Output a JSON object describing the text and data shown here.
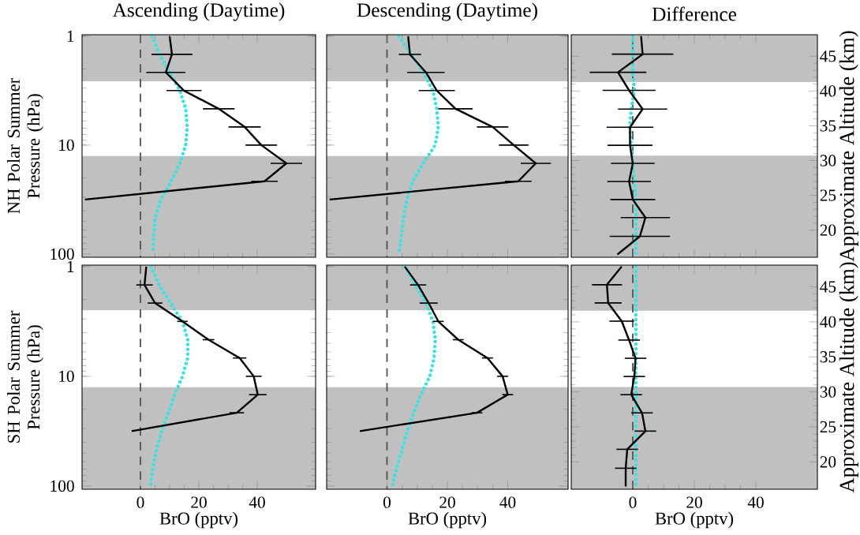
{
  "chart_data": [
    {
      "type": "line",
      "title": "Ascending (Daytime)",
      "ylabel": "NH Polar Summer Pressure (hPa)",
      "xlim": [
        -20,
        60
      ],
      "ylim": [
        107,
        0.97
      ],
      "xticks": [
        0,
        20,
        40
      ],
      "yticks": [
        1,
        10,
        100
      ],
      "log": "y",
      "tick_labels": "y",
      "marker": "none",
      "ref_lines": [
        {
          "axis": "x",
          "value": 0,
          "color": "#555555",
          "line_style": "dashed"
        }
      ],
      "bands": [
        {
          "axis": "y",
          "from": 0.97,
          "to": 2.6,
          "color": "#c0c0c0"
        },
        {
          "axis": "y",
          "from": 12.6,
          "to": 107,
          "color": "#c0c0c0"
        }
      ],
      "series": [
        {
          "color": "#40e0e0",
          "line_style": "dotted",
          "values": [
            1,
            1.47,
            2.15,
            3.16,
            4.64,
            6.81,
            10,
            14.7,
            21.5,
            31.6,
            46.4,
            68.1,
            100
          ],
          "x": [
            4,
            6.5,
            10,
            13.5,
            15.5,
            16,
            15.5,
            13.5,
            10.5,
            7,
            5,
            4.5,
            4.3
          ]
        },
        {
          "color": "#000000",
          "line_style": "solid",
          "values": [
            1,
            1.47,
            2.15,
            3.16,
            4.64,
            6.81,
            10,
            14.7,
            21.5,
            31.6
          ],
          "x": [
            10,
            10.8,
            8.7,
            14.9,
            26.8,
            35.7,
            41.4,
            50,
            42.5,
            -19
          ],
          "xerrors": [
            null,
            7,
            6.7,
            6,
            5.4,
            5.5,
            5.4,
            5.4,
            4.5,
            null
          ]
        }
      ]
    },
    {
      "type": "line",
      "title": "Descending (Daytime)",
      "xlim": [
        -20,
        60
      ],
      "ylim": [
        107,
        0.97
      ],
      "xticks": [
        0,
        20,
        40
      ],
      "yticks": [
        1,
        10,
        100
      ],
      "log": "y",
      "tick_labels": false,
      "marker": "none",
      "ref_lines": [
        {
          "axis": "x",
          "value": 0,
          "color": "#555555",
          "line_style": "dashed"
        }
      ],
      "bands": [
        {
          "axis": "y",
          "from": 0.97,
          "to": 2.6,
          "color": "#c0c0c0"
        },
        {
          "axis": "y",
          "from": 12.6,
          "to": 107,
          "color": "#c0c0c0"
        }
      ],
      "series": [
        {
          "color": "#40e0e0",
          "line_style": "dotted",
          "values": [
            1,
            1.47,
            2.15,
            3.16,
            4.64,
            6.81,
            10,
            14.7,
            21.5,
            31.6,
            46.4,
            68.1,
            100
          ],
          "x": [
            4,
            8,
            12,
            15.2,
            16.5,
            17,
            16,
            12,
            8.5,
            6.6,
            5.5,
            4.8,
            3.9
          ]
        },
        {
          "color": "#000000",
          "line_style": "solid",
          "values": [
            1,
            1.47,
            2.15,
            3.16,
            4.64,
            6.81,
            10,
            14.7,
            21.5,
            31.6
          ],
          "x": [
            7,
            7.6,
            12.9,
            16.5,
            22.7,
            35,
            42,
            49.3,
            43.5,
            -19
          ],
          "xerrors": [
            null,
            3.7,
            6.2,
            6,
            5.7,
            5.2,
            4.9,
            5,
            4.4,
            null
          ]
        }
      ]
    },
    {
      "type": "line",
      "title": "Difference",
      "y2label": "Approximate Altitude (km)",
      "xlim": [
        -20,
        60
      ],
      "xticks": [
        0,
        20,
        40
      ],
      "y2lim": [
        16.1,
        48.1
      ],
      "y2ticks": [
        20,
        25,
        30,
        35,
        40,
        45
      ],
      "tick_labels": "y",
      "marker": "none",
      "ref_lines": [
        {
          "axis": "x",
          "value": 0,
          "color": "#555555",
          "line_style": "dashed"
        }
      ],
      "bands": [
        {
          "axis": "y2",
          "from": 41.3,
          "to": 48.1,
          "color": "#c0c0c0"
        },
        {
          "axis": "y2",
          "from": 16.1,
          "to": 30.7,
          "color": "#c0c0c0"
        }
      ],
      "series": [
        {
          "axis": "y2",
          "color": "#40e0e0",
          "line_style": "dotted",
          "values": [
            47.9,
            45.3,
            42.7,
            40.1,
            37.4,
            34.8,
            32.2,
            29.6,
            27,
            24.4,
            21.8,
            19.1,
            16.5
          ],
          "x": [
            0,
            0,
            0,
            0.5,
            -0.5,
            -1,
            -0.5,
            0,
            0.5,
            1,
            1,
            1,
            1
          ]
        },
        {
          "axis": "y2",
          "color": "#000000",
          "line_style": "solid",
          "values": [
            47.9,
            45.3,
            42.7,
            40.1,
            37.4,
            34.8,
            32.2,
            29.6,
            27,
            24.4,
            21.8,
            19.1,
            16.5
          ],
          "x": [
            2.7,
            3.2,
            -4.8,
            -1.2,
            3.2,
            -0.9,
            -0.9,
            0,
            -1.2,
            0,
            4.1,
            2.3,
            -5
          ],
          "xerrors": [
            null,
            10,
            9.2,
            8.6,
            8,
            7.6,
            7.3,
            7.1,
            7.1,
            7.3,
            8,
            9.8,
            null
          ]
        }
      ]
    },
    {
      "type": "line",
      "xlabel": "BrO (pptv)",
      "ylabel": "SH Polar Summer Pressure (hPa)",
      "xlim": [
        -20,
        60
      ],
      "ylim": [
        107,
        0.97
      ],
      "xticks": [
        0,
        20,
        40
      ],
      "yticks": [
        1,
        10,
        100
      ],
      "log": "y",
      "marker": "none",
      "ref_lines": [
        {
          "axis": "x",
          "value": 0,
          "color": "#555555",
          "line_style": "dashed"
        }
      ],
      "bands": [
        {
          "axis": "y",
          "from": 0.97,
          "to": 2.5,
          "color": "#c0c0c0"
        },
        {
          "axis": "y",
          "from": 12.6,
          "to": 107,
          "color": "#c0c0c0"
        }
      ],
      "series": [
        {
          "color": "#40e0e0",
          "line_style": "dotted",
          "values": [
            1,
            1.47,
            2.15,
            3.16,
            4.64,
            6.81,
            10,
            14.7,
            21.5,
            31.6,
            46.4,
            68.1,
            100
          ],
          "x": [
            3.7,
            6.4,
            10.3,
            14.4,
            16.2,
            16.2,
            14.4,
            11.7,
            9.6,
            7.3,
            5.5,
            4.3,
            3.4
          ]
        },
        {
          "color": "#000000",
          "line_style": "solid",
          "values": [
            1,
            1.47,
            2.15,
            3.16,
            4.64,
            6.81,
            10,
            14.7,
            21.5,
            31.6
          ],
          "x": [
            2,
            1.4,
            5,
            14.4,
            23.3,
            34,
            38.8,
            40.2,
            33,
            -3
          ],
          "xerrors": [
            null,
            2.8,
            2.5,
            1.8,
            2,
            2.3,
            2.7,
            3,
            2.5,
            null
          ]
        }
      ]
    },
    {
      "type": "line",
      "xlabel": "BrO (pptv)",
      "xlim": [
        -20,
        60
      ],
      "ylim": [
        107,
        0.97
      ],
      "xticks": [
        0,
        20,
        40
      ],
      "yticks": [
        1,
        10,
        100
      ],
      "log": "y",
      "tick_labels": "x",
      "marker": "none",
      "ref_lines": [
        {
          "axis": "x",
          "value": 0,
          "color": "#555555",
          "line_style": "dashed"
        }
      ],
      "bands": [
        {
          "axis": "y",
          "from": 0.97,
          "to": 2.5,
          "color": "#c0c0c0"
        },
        {
          "axis": "y",
          "from": 12.6,
          "to": 107,
          "color": "#c0c0c0"
        }
      ],
      "series": [
        {
          "color": "#40e0e0",
          "line_style": "dotted",
          "values": [
            1,
            1.47,
            2.15,
            3.16,
            4.64,
            6.81,
            10,
            14.7,
            21.5,
            31.6,
            46.4,
            68.1,
            100
          ],
          "x": [
            5.9,
            9.4,
            12.9,
            15.2,
            16,
            15.6,
            14.2,
            11.2,
            8.9,
            6.7,
            5,
            3.2,
            1.8
          ]
        },
        {
          "color": "#000000",
          "line_style": "solid",
          "values": [
            1,
            1.47,
            2.15,
            3.16,
            4.64,
            6.81,
            10,
            14.7,
            21.5,
            31.6
          ],
          "x": [
            5.9,
            10.3,
            13.8,
            17,
            23.6,
            33.3,
            38.3,
            40,
            29.8,
            -9
          ],
          "xerrors": [
            null,
            2.7,
            3,
            1.8,
            1.8,
            1.8,
            1.8,
            1.8,
            1.8,
            null
          ]
        }
      ]
    },
    {
      "type": "line",
      "xlabel": "BrO (pptv)",
      "y2label": "Approximate Altitude (km)",
      "xlim": [
        -20,
        60
      ],
      "xticks": [
        0,
        20,
        40
      ],
      "y2lim": [
        16.1,
        48.1
      ],
      "y2ticks": [
        20,
        25,
        30,
        35,
        40,
        45
      ],
      "marker": "none",
      "ref_lines": [
        {
          "axis": "x",
          "value": 0,
          "color": "#555555",
          "line_style": "dashed"
        }
      ],
      "bands": [
        {
          "axis": "y2",
          "from": 41.6,
          "to": 48.1,
          "color": "#c0c0c0"
        },
        {
          "axis": "y2",
          "from": 16.1,
          "to": 30.7,
          "color": "#c0c0c0"
        }
      ],
      "series": [
        {
          "axis": "y2",
          "color": "#40e0e0",
          "line_style": "dotted",
          "values": [
            47.9,
            45.3,
            42.7,
            40.1,
            37.4,
            34.8,
            32.2,
            29.6,
            27,
            24.4,
            21.8,
            19.1,
            16.5
          ],
          "x": [
            1,
            1,
            1,
            1,
            1,
            1,
            1,
            1,
            1,
            1,
            1,
            1,
            1
          ]
        },
        {
          "axis": "y2",
          "color": "#000000",
          "line_style": "solid",
          "values": [
            47.9,
            45.3,
            42.7,
            40.1,
            37.4,
            34.8,
            32.2,
            29.6,
            27,
            24.4,
            21.8,
            19.1,
            16.5
          ],
          "x": [
            -3.6,
            -8.4,
            -8,
            -3.6,
            -1.2,
            0.9,
            0.5,
            -0.5,
            3,
            4.1,
            -1.8,
            -2.3,
            -2.3
          ],
          "xerrors": [
            null,
            4.9,
            4.4,
            4,
            3.5,
            3.5,
            3.5,
            3.5,
            3.5,
            3.5,
            3.5,
            3.5,
            null
          ]
        }
      ]
    }
  ]
}
